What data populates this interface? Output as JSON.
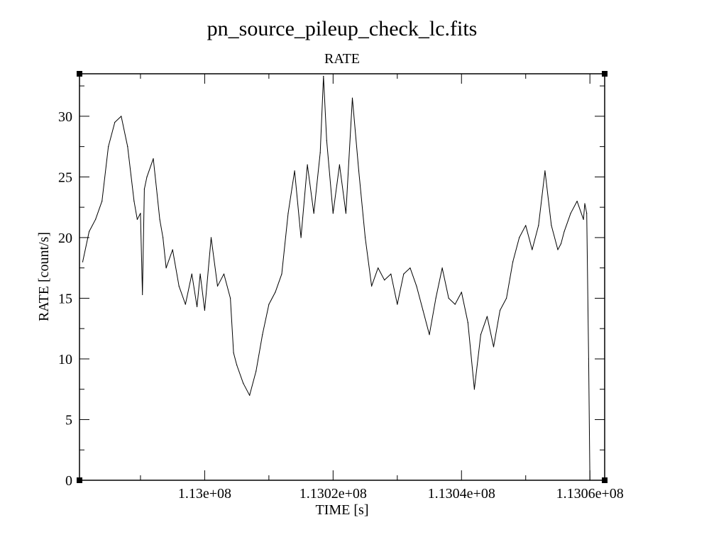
{
  "title": "pn_source_pileup_check_lc.fits",
  "subtitle": "RATE",
  "colors": {
    "line": "#000000",
    "frame": "#000000",
    "background": "#ffffff"
  },
  "chart_data": {
    "type": "line",
    "title": "pn_source_pileup_check_lc.fits",
    "subtitle": "RATE",
    "xlabel": "TIME [s]",
    "ylabel": "RATE [count/s]",
    "xlim": [
      112980500,
      113062300
    ],
    "ylim": [
      0,
      33.5
    ],
    "grid": false,
    "x_ticks": [
      {
        "value": 113000000,
        "label": "1.13e+08"
      },
      {
        "value": 113020000,
        "label": "1.1302e+08"
      },
      {
        "value": 113040000,
        "label": "1.1304e+08"
      },
      {
        "value": 113060000,
        "label": "1.1306e+08"
      }
    ],
    "x_minor_ticks": [
      112990000,
      113010000,
      113030000,
      113050000
    ],
    "y_ticks": [
      {
        "value": 0,
        "label": "0"
      },
      {
        "value": 5,
        "label": "5"
      },
      {
        "value": 10,
        "label": "10"
      },
      {
        "value": 15,
        "label": "15"
      },
      {
        "value": 20,
        "label": "20"
      },
      {
        "value": 25,
        "label": "25"
      },
      {
        "value": 30,
        "label": "30"
      }
    ],
    "y_minor_ticks": [
      2.5,
      7.5,
      12.5,
      17.5,
      22.5,
      27.5,
      32.5
    ],
    "series": [
      {
        "x": [
          112981000,
          112982000,
          112983000,
          112984000,
          112985000,
          112986000,
          112987000,
          112988000,
          112989000,
          112989500,
          112990000,
          112990300,
          112990600,
          112991000,
          112992000,
          112992500,
          112993000,
          112993500,
          112994000,
          112995000,
          112996000,
          112997000,
          112998000,
          112998800,
          112999300,
          113000000,
          113001000,
          113002000,
          113003000,
          113004000,
          113004500,
          113005000,
          113006000,
          113007000,
          113008000,
          113009000,
          113010000,
          113011000,
          113012000,
          113013000,
          113014000,
          113015000,
          113016000,
          113017000,
          113018000,
          113018500,
          113019000,
          113020000,
          113021000,
          113022000,
          113023000,
          113024000,
          113025000,
          113026000,
          113027000,
          113028000,
          113029000,
          113030000,
          113031000,
          113032000,
          113033000,
          113034000,
          113035000,
          113036000,
          113037000,
          113038000,
          113039000,
          113040000,
          113041000,
          113042000,
          113043000,
          113044000,
          113045000,
          113046000,
          113047000,
          113048000,
          113049000,
          113050000,
          113051000,
          113052000,
          113053000,
          113054000,
          113055000,
          113055500,
          113056000,
          113057000,
          113058000,
          113059000,
          113059200,
          113059500,
          113059800,
          113060000
        ],
        "y": [
          18,
          20.5,
          21.5,
          23,
          27.5,
          29.5,
          30,
          27.5,
          23,
          21.5,
          22,
          15.3,
          24,
          25,
          26.5,
          24,
          21.5,
          20,
          17.5,
          19,
          16,
          14.5,
          17,
          14.3,
          17,
          14,
          20,
          16,
          17,
          15,
          10.5,
          9.5,
          8,
          7,
          9,
          12,
          14.5,
          15.5,
          17,
          22,
          25.5,
          20,
          26,
          22,
          27,
          33.3,
          28,
          22,
          26,
          22,
          31.5,
          25.5,
          20,
          16,
          17.5,
          16.5,
          17,
          14.5,
          17,
          17.5,
          16,
          14,
          12,
          15,
          17.5,
          15,
          14.5,
          15.5,
          13,
          7.5,
          12,
          13.5,
          11,
          14,
          15,
          18,
          20,
          21,
          19,
          21,
          25.5,
          21,
          19,
          19.5,
          20.5,
          22,
          23,
          21.5,
          22.8,
          22,
          10,
          0
        ]
      }
    ]
  }
}
